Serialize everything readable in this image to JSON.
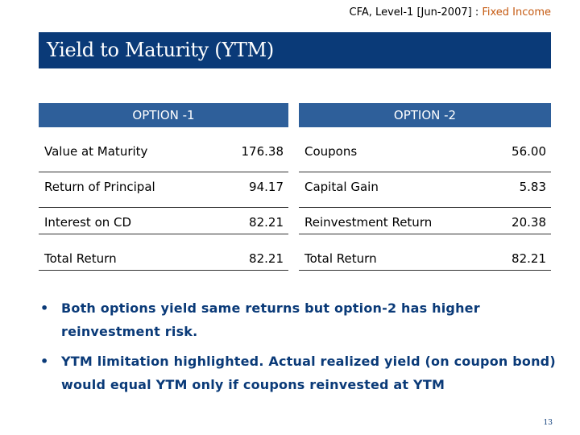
{
  "header": {
    "prefix": "CFA, Level-1 [Jun-2007] : ",
    "subject": "Fixed Income"
  },
  "title": "Yield to Maturity (YTM)",
  "option1": {
    "heading": "OPTION -1",
    "rows": [
      {
        "label": "Value at Maturity",
        "value": "176.38"
      },
      {
        "label": "Return of Principal",
        "value": "94.17"
      },
      {
        "label": "Interest on CD",
        "value": "82.21"
      },
      {
        "label": "Total Return",
        "value": "82.21"
      }
    ]
  },
  "option2": {
    "heading": "OPTION -2",
    "rows": [
      {
        "label": "Coupons",
        "value": "56.00"
      },
      {
        "label": "Capital Gain",
        "value": "5.83"
      },
      {
        "label": "Reinvestment Return",
        "value": "20.38"
      },
      {
        "label": "Total Return",
        "value": "82.21"
      }
    ]
  },
  "bullets": [
    "Both options yield same returns but option-2 has higher reinvestment risk.",
    "YTM limitation highlighted. Actual realized yield (on coupon bond) would equal YTM only if coupons reinvested at YTM"
  ],
  "bullet_symbol": "•",
  "page_number": "13",
  "colors": {
    "title_bg": "#0a3a78",
    "option_header_bg": "#2e5f9a",
    "bullet_text": "#0a3a78",
    "header_accent": "#c55a11"
  }
}
